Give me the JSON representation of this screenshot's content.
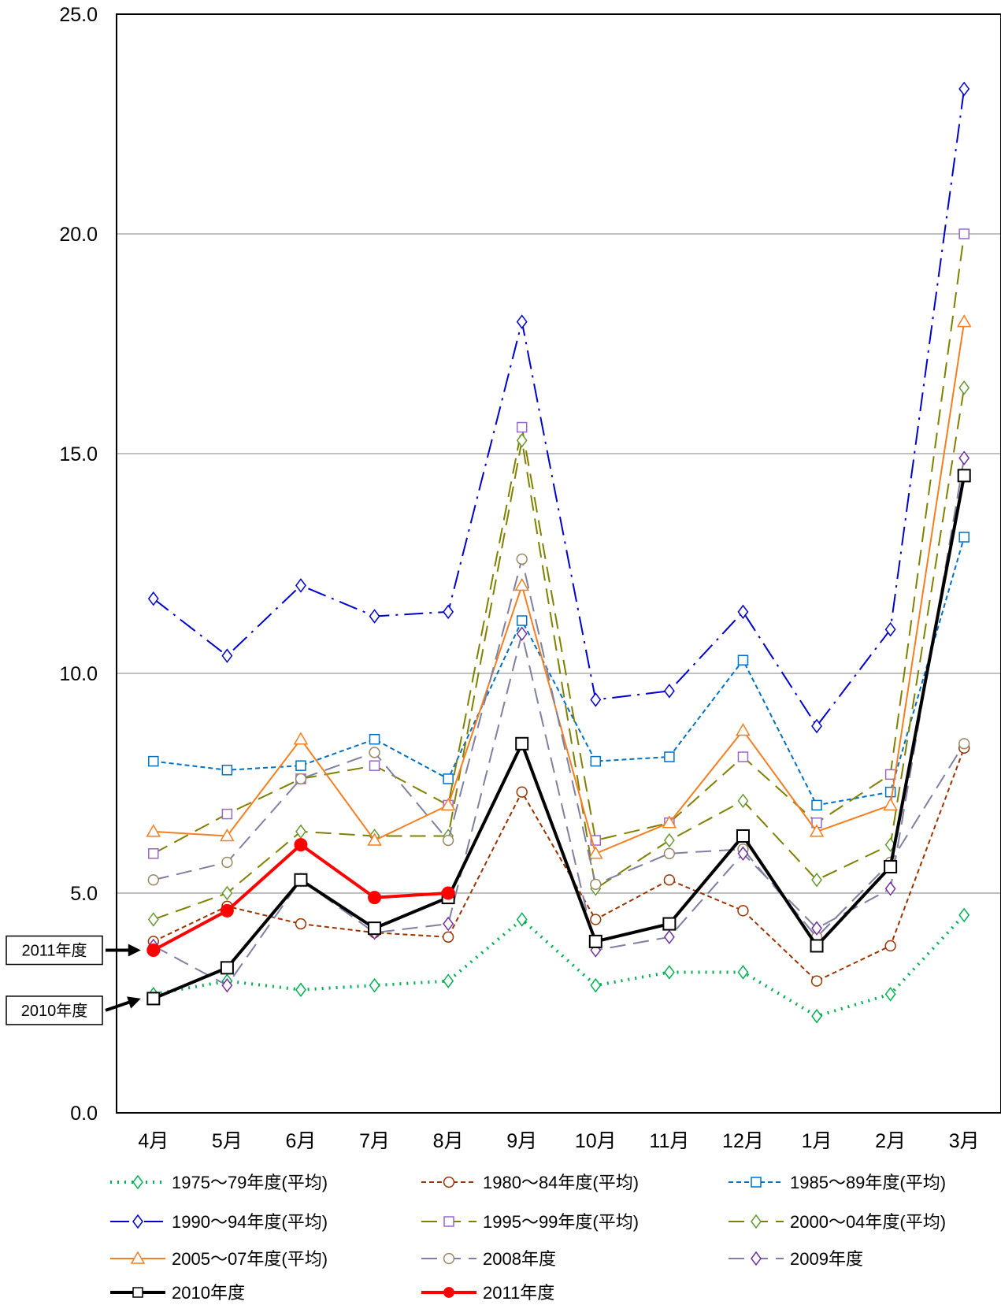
{
  "chart_data": {
    "type": "line",
    "title": "",
    "xlabel": "",
    "ylabel": "",
    "ylim": [
      0,
      25
    ],
    "yticks": [
      "0.0",
      "5.0",
      "10.0",
      "15.0",
      "20.0",
      "25.0"
    ],
    "grid": "horizontal",
    "legend_position": "bottom",
    "categories": [
      "4月",
      "5月",
      "6月",
      "7月",
      "8月",
      "9月",
      "10月",
      "11月",
      "12月",
      "1月",
      "2月",
      "3月"
    ],
    "series": [
      {
        "name": "1975～79年度(平均)",
        "color": "#00b050",
        "dash": "dot",
        "marker": "diamond",
        "filled": false,
        "width": 4,
        "values": [
          2.7,
          3.0,
          2.8,
          2.9,
          3.0,
          4.4,
          2.9,
          3.2,
          3.2,
          2.2,
          2.7,
          4.5
        ]
      },
      {
        "name": "1980～84年度(平均)",
        "color": "#993300",
        "dash": "short",
        "marker": "circle",
        "filled": false,
        "width": 2,
        "values": [
          3.9,
          4.7,
          4.3,
          4.1,
          4.0,
          7.3,
          4.4,
          5.3,
          4.6,
          3.0,
          3.8,
          8.3
        ]
      },
      {
        "name": "1985～89年度(平均)",
        "color": "#0070c0",
        "dash": "short",
        "marker": "square",
        "filled": false,
        "width": 2,
        "values": [
          8.0,
          7.8,
          7.9,
          8.5,
          7.6,
          11.2,
          8.0,
          8.1,
          10.3,
          7.0,
          7.3,
          13.1
        ]
      },
      {
        "name": "1990～94年度(平均)",
        "color": "#0000cc",
        "dash": "dashdot",
        "marker": "diamond",
        "filled": false,
        "width": 2,
        "values": [
          11.7,
          10.4,
          12.0,
          11.3,
          11.4,
          18.0,
          9.4,
          9.6,
          11.4,
          8.8,
          11.0,
          23.3
        ]
      },
      {
        "name": "1995～99年度(平均)",
        "color": "#808000",
        "dash": "long",
        "marker": "square",
        "filled": false,
        "width": 2,
        "markerColor": "#9966cc",
        "values": [
          5.9,
          6.8,
          7.6,
          7.9,
          7.0,
          15.6,
          6.2,
          6.6,
          8.1,
          6.6,
          7.7,
          20.0
        ]
      },
      {
        "name": "2000～04年度(平均)",
        "color": "#808000",
        "dash": "long",
        "marker": "diamond",
        "filled": false,
        "width": 2,
        "markerColor": "#669933",
        "values": [
          4.4,
          5.0,
          6.4,
          6.3,
          6.3,
          15.3,
          5.1,
          6.2,
          7.1,
          5.3,
          6.1,
          16.5
        ]
      },
      {
        "name": "2005～07年度(平均)",
        "color": "#f47e20",
        "dash": "solid",
        "marker": "triangle",
        "filled": false,
        "width": 2,
        "values": [
          6.4,
          6.3,
          8.5,
          6.2,
          7.0,
          12.0,
          5.9,
          6.6,
          8.7,
          6.4,
          7.0,
          18.0
        ]
      },
      {
        "name": "2008年度",
        "color": "#7f7fa0",
        "dash": "long",
        "marker": "circle",
        "filled": false,
        "width": 2,
        "markerColor": "#998866",
        "values": [
          5.3,
          5.7,
          7.6,
          8.2,
          6.2,
          12.6,
          5.2,
          5.9,
          6.0,
          4.0,
          5.7,
          8.4
        ]
      },
      {
        "name": "2009年度",
        "color": "#7f7fa0",
        "dash": "long",
        "marker": "diamond",
        "filled": false,
        "width": 2,
        "markerColor": "#7030a0",
        "values": [
          3.8,
          2.9,
          5.3,
          4.1,
          4.3,
          10.9,
          3.7,
          4.0,
          5.9,
          4.2,
          5.1,
          14.9
        ]
      },
      {
        "name": "2010年度",
        "color": "#000000",
        "dash": "solid",
        "marker": "square",
        "filled": false,
        "width": 4,
        "values": [
          2.6,
          3.3,
          5.3,
          4.2,
          4.9,
          8.4,
          3.9,
          4.3,
          6.3,
          3.8,
          5.6,
          14.5
        ]
      },
      {
        "name": "2011年度",
        "color": "#ff0000",
        "dash": "solid",
        "marker": "circle",
        "filled": true,
        "width": 4,
        "values": [
          3.7,
          4.6,
          6.1,
          4.9,
          5.0,
          null,
          null,
          null,
          null,
          null,
          null,
          null
        ]
      }
    ],
    "callouts": [
      {
        "label": "2011年度",
        "series": "2011年度"
      },
      {
        "label": "2010年度",
        "series": "2010年度"
      }
    ]
  }
}
